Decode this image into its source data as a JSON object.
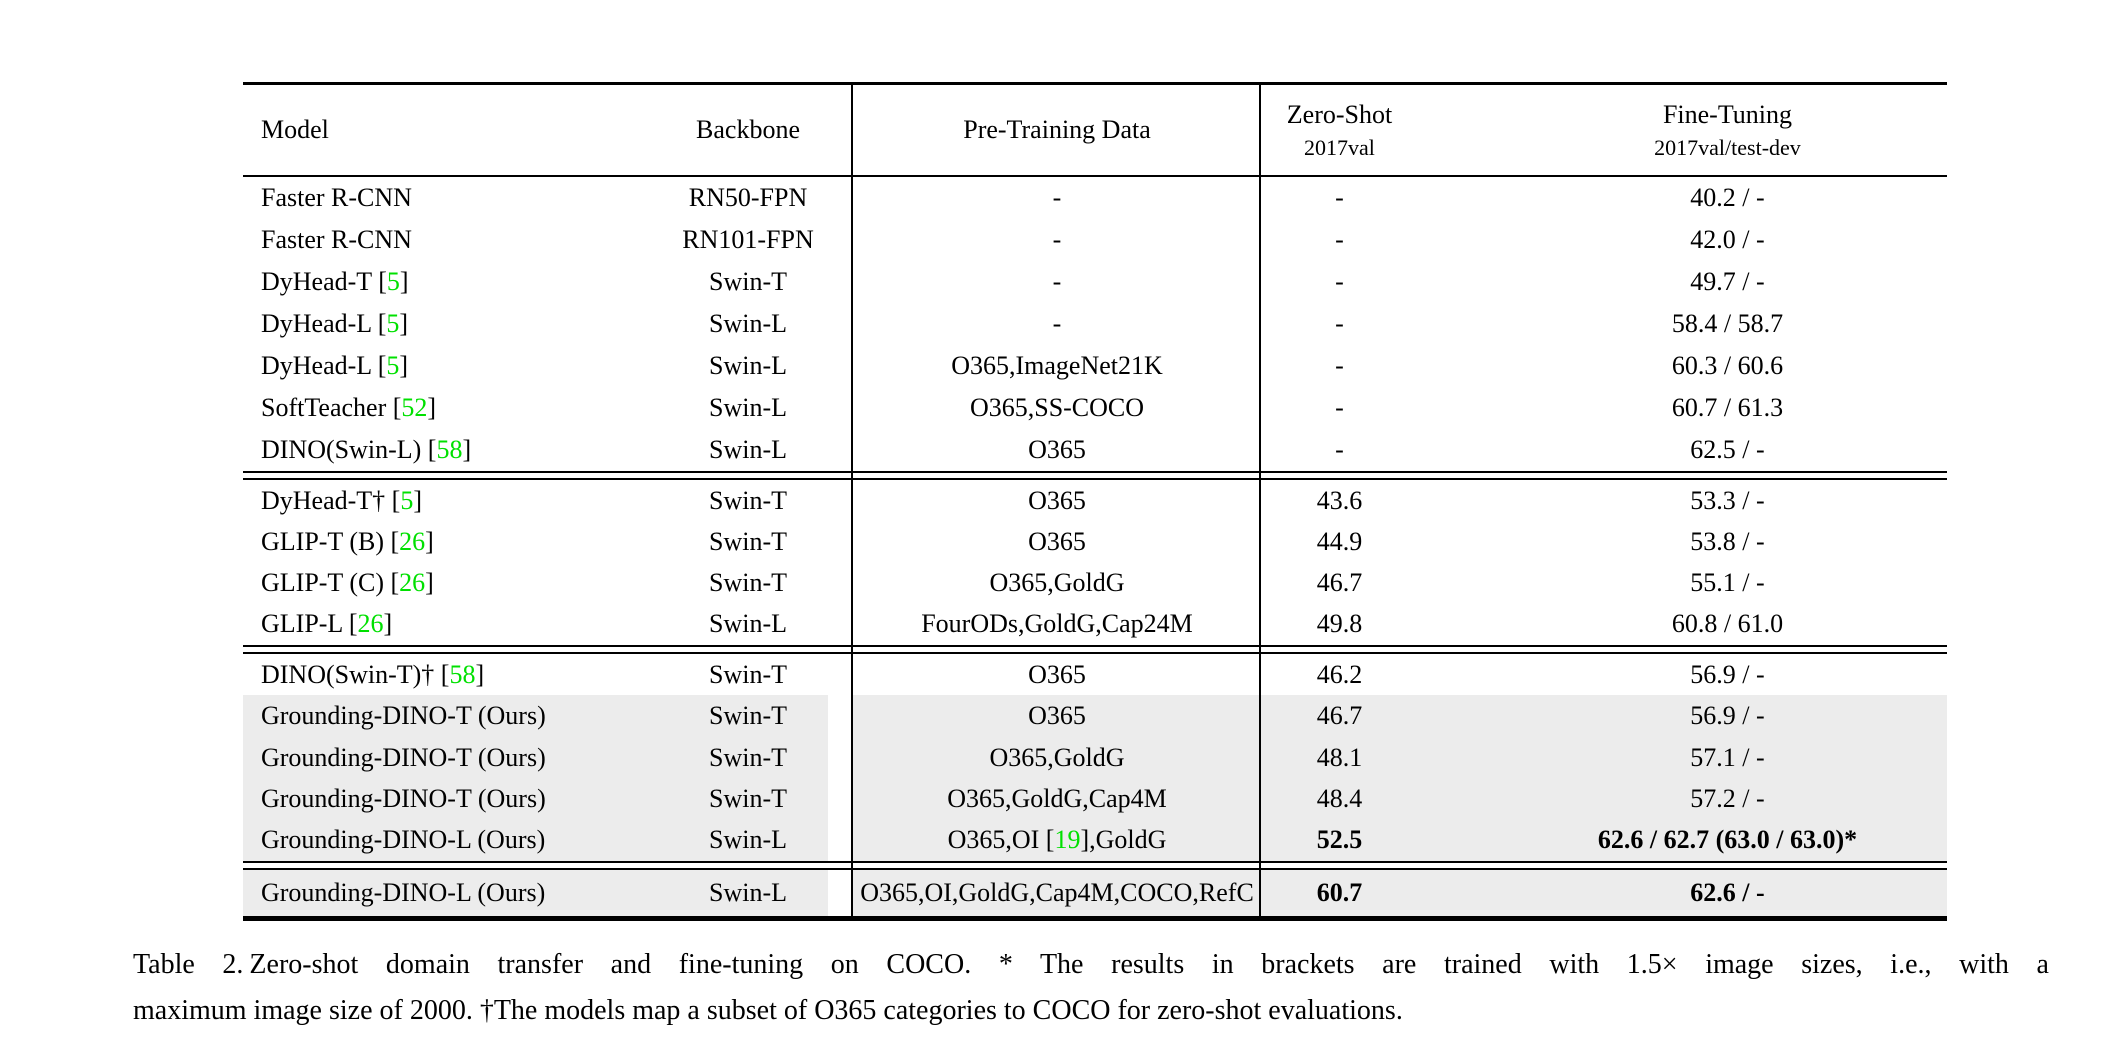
{
  "table": {
    "headers": {
      "model": "Model",
      "backbone": "Backbone",
      "pretrain": "Pre-Training Data",
      "zeroshot_title": "Zero-Shot",
      "zeroshot_sub": "2017val",
      "finetune_title": "Fine-Tuning",
      "finetune_sub": "2017val/test-dev"
    },
    "groups": [
      {
        "rows": [
          {
            "model": [
              {
                "t": "Faster R-CNN"
              }
            ],
            "backbone": "RN50-FPN",
            "pretrain": [
              {
                "t": "-"
              }
            ],
            "zeroshot": "-",
            "finetune": "40.2 / -"
          },
          {
            "model": [
              {
                "t": "Faster R-CNN"
              }
            ],
            "backbone": "RN101-FPN",
            "pretrain": [
              {
                "t": "-"
              }
            ],
            "zeroshot": "-",
            "finetune": "42.0 / -"
          },
          {
            "model": [
              {
                "t": "DyHead-T ["
              },
              {
                "t": "5",
                "cite": true
              },
              {
                "t": "]"
              }
            ],
            "backbone": "Swin-T",
            "pretrain": [
              {
                "t": "-"
              }
            ],
            "zeroshot": "-",
            "finetune": "49.7 / -"
          },
          {
            "model": [
              {
                "t": "DyHead-L ["
              },
              {
                "t": "5",
                "cite": true
              },
              {
                "t": "]"
              }
            ],
            "backbone": "Swin-L",
            "pretrain": [
              {
                "t": "-"
              }
            ],
            "zeroshot": "-",
            "finetune": "58.4 / 58.7"
          },
          {
            "model": [
              {
                "t": "DyHead-L ["
              },
              {
                "t": "5",
                "cite": true
              },
              {
                "t": "]"
              }
            ],
            "backbone": "Swin-L",
            "pretrain": [
              {
                "t": "O365,ImageNet21K"
              }
            ],
            "zeroshot": "-",
            "finetune": "60.3 / 60.6"
          },
          {
            "model": [
              {
                "t": "SoftTeacher ["
              },
              {
                "t": "52",
                "cite": true
              },
              {
                "t": "]"
              }
            ],
            "backbone": "Swin-L",
            "pretrain": [
              {
                "t": "O365,SS-COCO"
              }
            ],
            "zeroshot": "-",
            "finetune": "60.7 / 61.3"
          },
          {
            "model": [
              {
                "t": "DINO(Swin-L) ["
              },
              {
                "t": "58",
                "cite": true
              },
              {
                "t": "]"
              }
            ],
            "backbone": "Swin-L",
            "pretrain": [
              {
                "t": "O365"
              }
            ],
            "zeroshot": "-",
            "finetune": "62.5 / -"
          }
        ]
      },
      {
        "rows": [
          {
            "model": [
              {
                "t": "DyHead-T† ["
              },
              {
                "t": "5",
                "cite": true
              },
              {
                "t": "]"
              }
            ],
            "backbone": "Swin-T",
            "pretrain": [
              {
                "t": "O365"
              }
            ],
            "zeroshot": "43.6",
            "finetune": "53.3 / -"
          },
          {
            "model": [
              {
                "t": "GLIP-T (B) ["
              },
              {
                "t": "26",
                "cite": true
              },
              {
                "t": "]"
              }
            ],
            "backbone": "Swin-T",
            "pretrain": [
              {
                "t": "O365"
              }
            ],
            "zeroshot": "44.9",
            "finetune": "53.8 / -"
          },
          {
            "model": [
              {
                "t": "GLIP-T (C) ["
              },
              {
                "t": "26",
                "cite": true
              },
              {
                "t": "]"
              }
            ],
            "backbone": "Swin-T",
            "pretrain": [
              {
                "t": "O365,GoldG"
              }
            ],
            "zeroshot": "46.7",
            "finetune": "55.1 / -"
          },
          {
            "model": [
              {
                "t": "GLIP-L ["
              },
              {
                "t": "26",
                "cite": true
              },
              {
                "t": "]"
              }
            ],
            "backbone": "Swin-L",
            "pretrain": [
              {
                "t": "FourODs,GoldG,Cap24M"
              }
            ],
            "zeroshot": "49.8",
            "finetune": "60.8 / 61.0"
          }
        ]
      },
      {
        "rows": [
          {
            "model": [
              {
                "t": "DINO(Swin-T)† ["
              },
              {
                "t": "58",
                "cite": true
              },
              {
                "t": "]"
              }
            ],
            "backbone": "Swin-T",
            "pretrain": [
              {
                "t": "O365"
              }
            ],
            "zeroshot": "46.2",
            "finetune": "56.9 / -"
          },
          {
            "model": [
              {
                "t": "Grounding-DINO-T (Ours)"
              }
            ],
            "backbone": "Swin-T",
            "pretrain": [
              {
                "t": "O365"
              }
            ],
            "zeroshot": "46.7",
            "finetune": "56.9 / -",
            "highlight": true
          },
          {
            "model": [
              {
                "t": "Grounding-DINO-T (Ours)"
              }
            ],
            "backbone": "Swin-T",
            "pretrain": [
              {
                "t": "O365,GoldG"
              }
            ],
            "zeroshot": "48.1",
            "finetune": "57.1 / -",
            "highlight": true
          },
          {
            "model": [
              {
                "t": "Grounding-DINO-T (Ours)"
              }
            ],
            "backbone": "Swin-T",
            "pretrain": [
              {
                "t": "O365,GoldG,Cap4M"
              }
            ],
            "zeroshot": "48.4",
            "finetune": "57.2 / -",
            "highlight": true
          },
          {
            "model": [
              {
                "t": "Grounding-DINO-L (Ours)"
              }
            ],
            "backbone": "Swin-L",
            "pretrain": [
              {
                "t": "O365,OI ["
              },
              {
                "t": "19",
                "cite": true
              },
              {
                "t": "],GoldG"
              }
            ],
            "zeroshot": "52.5",
            "finetune": "62.6 / 62.7 (63.0 / 63.0)*",
            "highlight": true,
            "bold_metrics": true
          }
        ]
      },
      {
        "rows": [
          {
            "model": [
              {
                "t": "Grounding-DINO-L (Ours)"
              }
            ],
            "backbone": "Swin-L",
            "pretrain": [
              {
                "t": "O365,OI,GoldG,Cap4M,COCO,RefC"
              }
            ],
            "zeroshot": "60.7",
            "finetune": "62.6 / -",
            "highlight": true,
            "bold_metrics": true
          }
        ]
      }
    ]
  },
  "caption": {
    "label": "Table 2.",
    "line1": "Zero-shot domain transfer and fine-tuning on COCO. * The results in brackets are trained with 1.5× image sizes, i.e., with a",
    "line2": "maximum image size of 2000. †The models map a subset of O365 categories to COCO for zero-shot evaluations."
  },
  "colors": {
    "citation_green": "#00e000",
    "row_highlight": "#ececec",
    "rule_black": "#000000"
  }
}
